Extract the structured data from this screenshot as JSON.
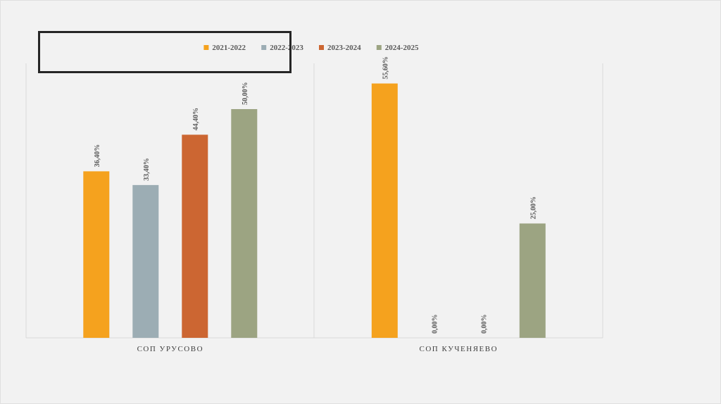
{
  "chart_data": {
    "type": "bar",
    "categories": [
      "СОП УРУСОВО",
      "СОП КУЧЕНЯЕВО"
    ],
    "series": [
      {
        "name": "2021-2022",
        "color": "#f5a21e",
        "values": [
          36.4,
          55.6
        ],
        "labels": [
          "36,40%",
          "55,60%"
        ]
      },
      {
        "name": "2022-2023",
        "color": "#9cadb4",
        "values": [
          33.4,
          0.0
        ],
        "labels": [
          "33,40%",
          "0,00%"
        ]
      },
      {
        "name": "2023-2024",
        "color": "#cc6632",
        "values": [
          44.4,
          0.0
        ],
        "labels": [
          "44,40%",
          "0,00%"
        ]
      },
      {
        "name": "2024-2025",
        "color": "#9ca482",
        "values": [
          50.0,
          25.0
        ],
        "labels": [
          "50,00%",
          "25,00%"
        ]
      }
    ],
    "ylim": [
      0,
      60
    ],
    "grid": false,
    "legend_position": "top",
    "title": "",
    "xlabel": "",
    "ylabel": ""
  }
}
